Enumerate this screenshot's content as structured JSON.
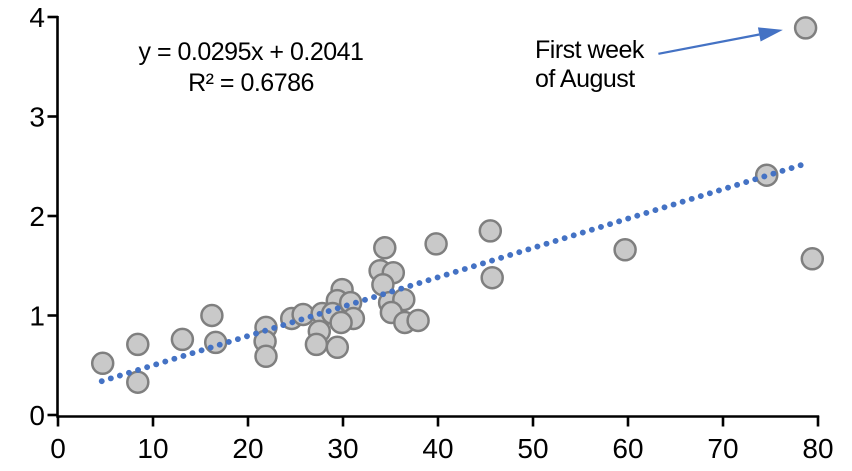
{
  "chart_data": {
    "type": "scatter",
    "title": "",
    "equation_label": "y = 0.0295x + 0.2041",
    "r_squared_label": "R² = 0.6786",
    "annotation": {
      "line1": "First week",
      "line2": "of August",
      "arrow_from": {
        "x": 63.2,
        "y": 3.63
      },
      "arrow_to": {
        "x": 76.3,
        "y": 3.87
      },
      "target_point": {
        "x": 78.7,
        "y": 3.89
      }
    },
    "trendline": {
      "slope": 0.0295,
      "intercept": 0.2041,
      "x_start": 4.6,
      "x_end": 79.0,
      "style": "dotted"
    },
    "x_axis": {
      "min": 0,
      "max": 80,
      "tick_interval": 10,
      "ticks": [
        0,
        10,
        20,
        30,
        40,
        50,
        60,
        70,
        80
      ]
    },
    "y_axis": {
      "min": 0,
      "max": 4,
      "tick_interval": 1,
      "ticks": [
        0,
        1,
        2,
        3,
        4
      ]
    },
    "points": [
      {
        "x": 4.7,
        "y": 0.52
      },
      {
        "x": 8.4,
        "y": 0.71
      },
      {
        "x": 8.4,
        "y": 0.33
      },
      {
        "x": 13.1,
        "y": 0.76
      },
      {
        "x": 16.2,
        "y": 1.0
      },
      {
        "x": 16.6,
        "y": 0.73
      },
      {
        "x": 21.9,
        "y": 0.88
      },
      {
        "x": 21.8,
        "y": 0.74
      },
      {
        "x": 21.9,
        "y": 0.59
      },
      {
        "x": 24.6,
        "y": 0.97
      },
      {
        "x": 25.8,
        "y": 1.01
      },
      {
        "x": 27.8,
        "y": 1.02
      },
      {
        "x": 27.5,
        "y": 0.84
      },
      {
        "x": 27.2,
        "y": 0.71
      },
      {
        "x": 29.4,
        "y": 0.68
      },
      {
        "x": 29.9,
        "y": 1.26
      },
      {
        "x": 29.4,
        "y": 1.15
      },
      {
        "x": 30.8,
        "y": 1.13
      },
      {
        "x": 28.9,
        "y": 1.02
      },
      {
        "x": 31.1,
        "y": 0.97
      },
      {
        "x": 29.8,
        "y": 0.93
      },
      {
        "x": 34.4,
        "y": 1.68
      },
      {
        "x": 33.9,
        "y": 1.45
      },
      {
        "x": 35.3,
        "y": 1.43
      },
      {
        "x": 34.2,
        "y": 1.31
      },
      {
        "x": 34.9,
        "y": 1.13
      },
      {
        "x": 36.4,
        "y": 1.16
      },
      {
        "x": 35.1,
        "y": 1.03
      },
      {
        "x": 36.5,
        "y": 0.93
      },
      {
        "x": 37.9,
        "y": 0.95
      },
      {
        "x": 39.8,
        "y": 1.72
      },
      {
        "x": 45.5,
        "y": 1.85
      },
      {
        "x": 45.7,
        "y": 1.38
      },
      {
        "x": 59.7,
        "y": 1.66
      },
      {
        "x": 74.6,
        "y": 2.41
      },
      {
        "x": 78.7,
        "y": 3.89
      },
      {
        "x": 79.4,
        "y": 1.57
      }
    ],
    "colors": {
      "marker_fill": "#c9c9c9",
      "marker_stroke": "#7f7f7f",
      "trendline_blue": "#4472c4",
      "axis_black": "#000000",
      "text_black": "#000000",
      "background": "#ffffff"
    }
  }
}
